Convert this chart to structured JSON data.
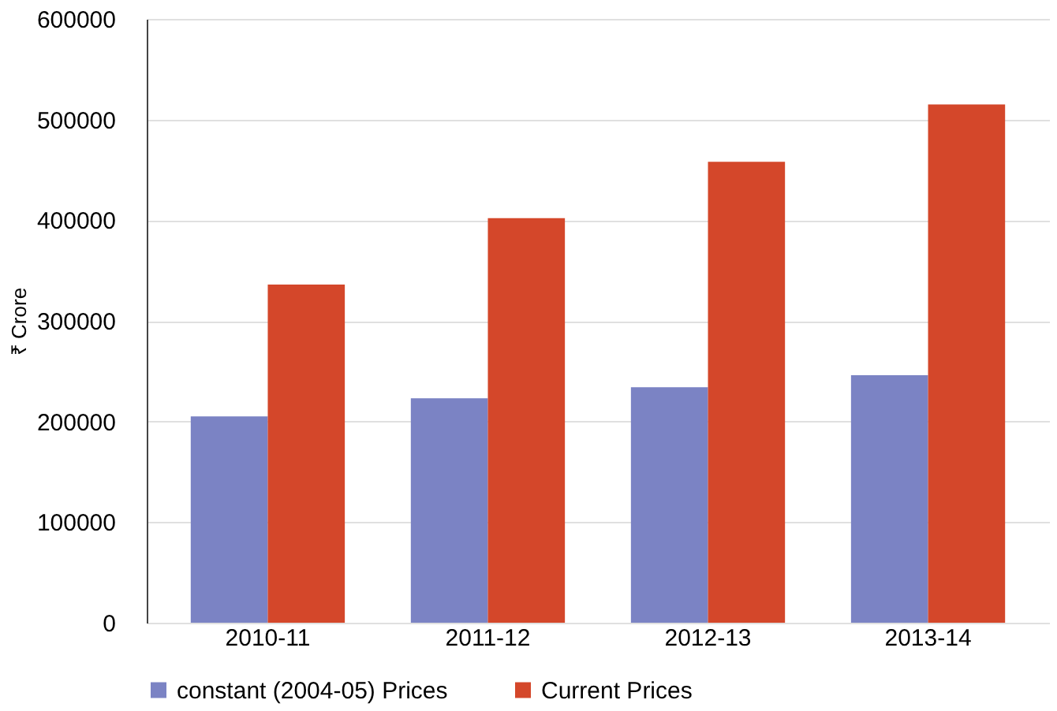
{
  "chart_data": {
    "type": "bar",
    "ylabel": "₹ Crore",
    "categories": [
      "2010-11",
      "2011-12",
      "2012-13",
      "2013-14"
    ],
    "series": [
      {
        "name": "constant (2004-05) Prices",
        "color": "#7b83c4",
        "values": [
          205000,
          223000,
          234000,
          246000
        ]
      },
      {
        "name": "Current Prices",
        "color": "#d4472a",
        "values": [
          336000,
          402000,
          458000,
          515000
        ]
      }
    ],
    "ylim": [
      0,
      600000
    ],
    "yticks": [
      0,
      100000,
      200000,
      300000,
      400000,
      500000,
      600000
    ],
    "grid": "y",
    "legend": "bottom"
  }
}
